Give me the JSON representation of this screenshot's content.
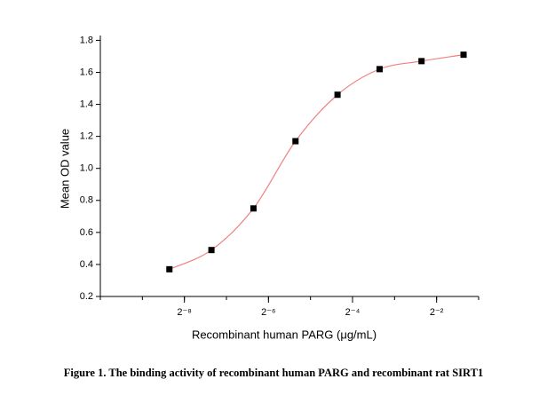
{
  "chart_data": {
    "type": "scatter",
    "x_label": "Recombinant human PARG (μg/mL)",
    "y_label": "Mean OD value",
    "caption": "Figure 1. The binding activity of recombinant human PARG and recombinant rat SIRT1",
    "xscale": "log2",
    "xlim": [
      0.0009765625,
      0.5
    ],
    "xticks": [
      {
        "value": 0.00390625,
        "label": "2⁻⁸"
      },
      {
        "value": 0.015625,
        "label": "2⁻⁶"
      },
      {
        "value": 0.0625,
        "label": "2⁻⁴"
      },
      {
        "value": 0.25,
        "label": "2⁻²"
      }
    ],
    "ylim": [
      0.2,
      1.83
    ],
    "yticks": [
      0.2,
      0.4,
      0.6,
      0.8,
      {
        "value": 1,
        "label": "1.0"
      },
      1.2,
      1.4,
      1.6,
      1.8
    ],
    "series": [
      {
        "color": "#000000",
        "line_color": "#f08080",
        "x": [
          0.00305,
          0.0061,
          0.0122,
          0.0244,
          0.0488,
          0.0977,
          0.195,
          0.39
        ],
        "values": [
          0.37,
          0.49,
          0.75,
          1.17,
          1.46,
          1.62,
          1.67,
          1.71
        ]
      }
    ]
  }
}
